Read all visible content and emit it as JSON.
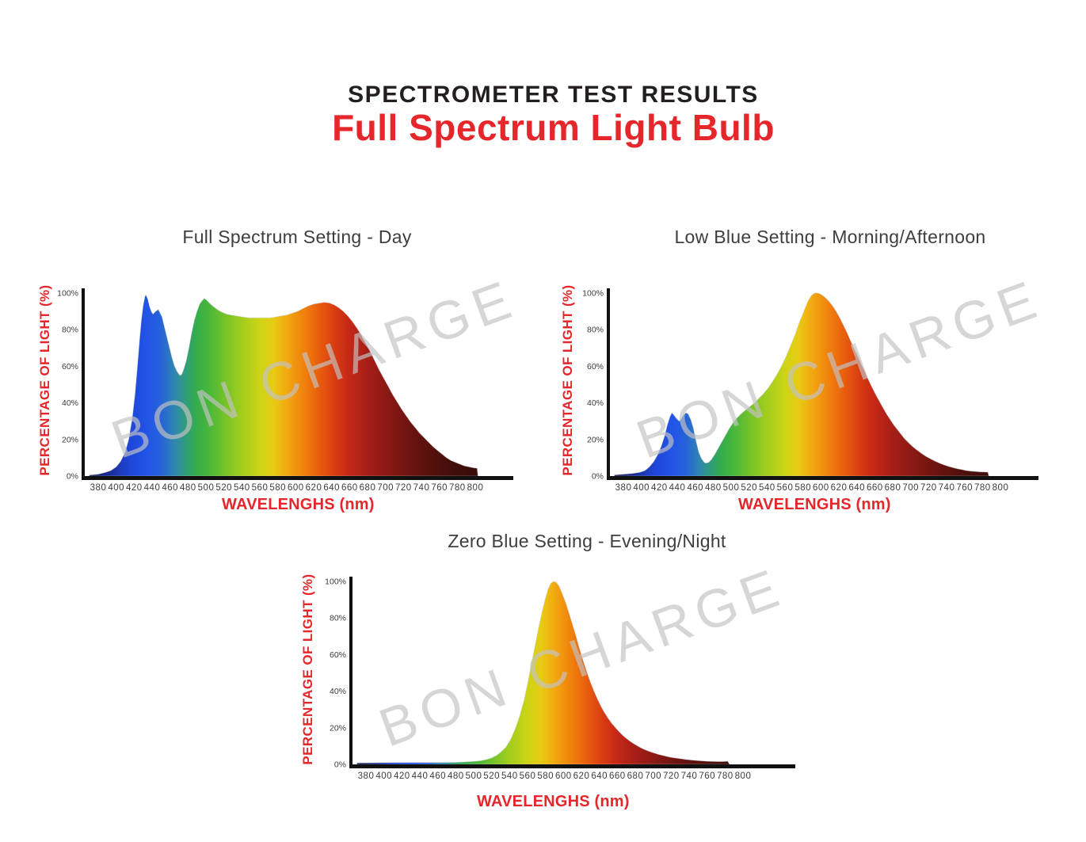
{
  "header": {
    "title": "SPECTROMETER TEST RESULTS",
    "subtitle": "Full Spectrum Light Bulb"
  },
  "watermark": {
    "text": "BON CHARGE",
    "color": "#c2c2c2"
  },
  "colors": {
    "accent_red": "#e5262a",
    "title_black": "#231f20",
    "chart_title_gray": "#3e3e3e",
    "tick_gray": "#3c3c3c",
    "axis_black": "#111111"
  },
  "axis": {
    "x_label": "WAVELENGHS (nm)",
    "y_label": "PERCENTAGE OF LIGHT (%)",
    "x_ticks": [
      380,
      400,
      420,
      440,
      460,
      480,
      500,
      520,
      540,
      560,
      580,
      600,
      620,
      640,
      660,
      680,
      700,
      720,
      740,
      760,
      780,
      800
    ],
    "y_tick_labels": [
      "0%",
      "20%",
      "40%",
      "60%",
      "80%",
      "100%"
    ],
    "y_tick_values": [
      0,
      20,
      40,
      60,
      80,
      100
    ]
  },
  "spectrum_gradient": [
    {
      "wl": 370,
      "color": "#10164f"
    },
    {
      "wl": 395,
      "color": "#1b2f9e"
    },
    {
      "wl": 415,
      "color": "#1f46d8"
    },
    {
      "wl": 435,
      "color": "#2155e8"
    },
    {
      "wl": 450,
      "color": "#2763d8"
    },
    {
      "wl": 465,
      "color": "#2f86b0"
    },
    {
      "wl": 478,
      "color": "#2f9e77"
    },
    {
      "wl": 490,
      "color": "#35ad4a"
    },
    {
      "wl": 505,
      "color": "#4cb838"
    },
    {
      "wl": 520,
      "color": "#72c22a"
    },
    {
      "wl": 540,
      "color": "#a2cd1e"
    },
    {
      "wl": 560,
      "color": "#cdd416"
    },
    {
      "wl": 575,
      "color": "#e7cb13"
    },
    {
      "wl": 588,
      "color": "#f2ae11"
    },
    {
      "wl": 600,
      "color": "#f1930f"
    },
    {
      "wl": 615,
      "color": "#ee750d"
    },
    {
      "wl": 630,
      "color": "#e5560e"
    },
    {
      "wl": 645,
      "color": "#d73a12"
    },
    {
      "wl": 660,
      "color": "#c42817"
    },
    {
      "wl": 680,
      "color": "#a61e18"
    },
    {
      "wl": 700,
      "color": "#8d1a14"
    },
    {
      "wl": 720,
      "color": "#751511"
    },
    {
      "wl": 740,
      "color": "#60120e"
    },
    {
      "wl": 760,
      "color": "#4e100c"
    },
    {
      "wl": 780,
      "color": "#400e0b"
    },
    {
      "wl": 810,
      "color": "#330c09"
    }
  ],
  "chart_data": [
    {
      "type": "area",
      "title": "Full Spectrum Setting - Day",
      "xlabel": "WAVELENGHS (nm)",
      "ylabel": "PERCENTAGE OF LIGHT (%)",
      "xlim": [
        380,
        800
      ],
      "ylim_pct": [
        0,
        100
      ],
      "points": [
        [
          370,
          0.5
        ],
        [
          380,
          1
        ],
        [
          388,
          2
        ],
        [
          394,
          3
        ],
        [
          400,
          5
        ],
        [
          405,
          8
        ],
        [
          410,
          13
        ],
        [
          414,
          20
        ],
        [
          418,
          32
        ],
        [
          421,
          45
        ],
        [
          424,
          62
        ],
        [
          426,
          74
        ],
        [
          428,
          85
        ],
        [
          430,
          93
        ],
        [
          432,
          98
        ],
        [
          433,
          99
        ],
        [
          435,
          97
        ],
        [
          437,
          93
        ],
        [
          439,
          90
        ],
        [
          441,
          88.5
        ],
        [
          444,
          90
        ],
        [
          447,
          91
        ],
        [
          449,
          89
        ],
        [
          451,
          87
        ],
        [
          453,
          83
        ],
        [
          456,
          77
        ],
        [
          459,
          71
        ],
        [
          462,
          65
        ],
        [
          465,
          60
        ],
        [
          468,
          57
        ],
        [
          471,
          55
        ],
        [
          473,
          55.5
        ],
        [
          475,
          58
        ],
        [
          478,
          63
        ],
        [
          481,
          70
        ],
        [
          484,
          78
        ],
        [
          487,
          85
        ],
        [
          490,
          90
        ],
        [
          493,
          94
        ],
        [
          496,
          96
        ],
        [
          498,
          97
        ],
        [
          500,
          96.5
        ],
        [
          503,
          95
        ],
        [
          506,
          93.5
        ],
        [
          510,
          92
        ],
        [
          514,
          90.5
        ],
        [
          518,
          89.5
        ],
        [
          523,
          88.5
        ],
        [
          528,
          88
        ],
        [
          534,
          87.5
        ],
        [
          540,
          87
        ],
        [
          548,
          86.5
        ],
        [
          556,
          86.5
        ],
        [
          564,
          86.5
        ],
        [
          572,
          86.5
        ],
        [
          578,
          87
        ],
        [
          584,
          87.5
        ],
        [
          590,
          88
        ],
        [
          596,
          89
        ],
        [
          602,
          90
        ],
        [
          608,
          91.5
        ],
        [
          614,
          93
        ],
        [
          620,
          94
        ],
        [
          626,
          94.5
        ],
        [
          632,
          95
        ],
        [
          638,
          94.5
        ],
        [
          643,
          93.5
        ],
        [
          648,
          92
        ],
        [
          653,
          90
        ],
        [
          658,
          87.5
        ],
        [
          663,
          84.5
        ],
        [
          668,
          81
        ],
        [
          673,
          77
        ],
        [
          678,
          72.5
        ],
        [
          683,
          68
        ],
        [
          688,
          63
        ],
        [
          693,
          58
        ],
        [
          698,
          53.5
        ],
        [
          703,
          49
        ],
        [
          708,
          44.5
        ],
        [
          713,
          40.5
        ],
        [
          718,
          36.5
        ],
        [
          723,
          33
        ],
        [
          728,
          29.5
        ],
        [
          733,
          26.5
        ],
        [
          738,
          23.5
        ],
        [
          743,
          21
        ],
        [
          748,
          18.5
        ],
        [
          753,
          16
        ],
        [
          758,
          14
        ],
        [
          763,
          12
        ],
        [
          768,
          10
        ],
        [
          773,
          8.5
        ],
        [
          778,
          7.5
        ],
        [
          783,
          6.5
        ],
        [
          788,
          5.5
        ],
        [
          793,
          5
        ],
        [
          798,
          4.5
        ],
        [
          802,
          4.3
        ],
        [
          803,
          0
        ]
      ]
    },
    {
      "type": "area",
      "title": "Low Blue Setting - Morning/Afternoon",
      "xlabel": "WAVELENGHS (nm)",
      "ylabel": "PERCENTAGE OF LIGHT (%)",
      "xlim": [
        380,
        800
      ],
      "ylim_pct": [
        0,
        100
      ],
      "points": [
        [
          370,
          0.6
        ],
        [
          380,
          1
        ],
        [
          390,
          1.4
        ],
        [
          398,
          2
        ],
        [
          404,
          3
        ],
        [
          409,
          5
        ],
        [
          414,
          8
        ],
        [
          418,
          11.5
        ],
        [
          422,
          16
        ],
        [
          426,
          22
        ],
        [
          429,
          28
        ],
        [
          432,
          32.5
        ],
        [
          434,
          34.5
        ],
        [
          436,
          33.5
        ],
        [
          439,
          31.5
        ],
        [
          442,
          30
        ],
        [
          444,
          31
        ],
        [
          447,
          33.5
        ],
        [
          450,
          34.5
        ],
        [
          452,
          34
        ],
        [
          455,
          31
        ],
        [
          458,
          26
        ],
        [
          461,
          19
        ],
        [
          464,
          13
        ],
        [
          467,
          9.5
        ],
        [
          470,
          7.5
        ],
        [
          472,
          7
        ],
        [
          475,
          7.5
        ],
        [
          478,
          9
        ],
        [
          482,
          12
        ],
        [
          486,
          15.5
        ],
        [
          490,
          19
        ],
        [
          494,
          22.5
        ],
        [
          498,
          26
        ],
        [
          502,
          29
        ],
        [
          506,
          31.5
        ],
        [
          511,
          34
        ],
        [
          516,
          36
        ],
        [
          521,
          38
        ],
        [
          526,
          40
        ],
        [
          531,
          42.5
        ],
        [
          536,
          45
        ],
        [
          541,
          48
        ],
        [
          546,
          51.5
        ],
        [
          551,
          55.5
        ],
        [
          556,
          60
        ],
        [
          561,
          65
        ],
        [
          566,
          71
        ],
        [
          571,
          77
        ],
        [
          576,
          84
        ],
        [
          581,
          90
        ],
        [
          585,
          95
        ],
        [
          589,
          98.5
        ],
        [
          593,
          100
        ],
        [
          597,
          100
        ],
        [
          601,
          99
        ],
        [
          605,
          97.5
        ],
        [
          609,
          95.5
        ],
        [
          613,
          93
        ],
        [
          617,
          90
        ],
        [
          621,
          86.5
        ],
        [
          625,
          82.5
        ],
        [
          629,
          78.5
        ],
        [
          633,
          74
        ],
        [
          637,
          69.5
        ],
        [
          641,
          65.5
        ],
        [
          645,
          61
        ],
        [
          649,
          57
        ],
        [
          653,
          52.5
        ],
        [
          657,
          48.5
        ],
        [
          661,
          44.5
        ],
        [
          665,
          41
        ],
        [
          669,
          37.5
        ],
        [
          673,
          34
        ],
        [
          677,
          31
        ],
        [
          681,
          28
        ],
        [
          685,
          25.5
        ],
        [
          689,
          23
        ],
        [
          693,
          20.5
        ],
        [
          697,
          18.5
        ],
        [
          702,
          16.2
        ],
        [
          707,
          14.2
        ],
        [
          712,
          12.4
        ],
        [
          717,
          10.8
        ],
        [
          722,
          9.4
        ],
        [
          727,
          8.2
        ],
        [
          732,
          7.1
        ],
        [
          737,
          6.1
        ],
        [
          742,
          5.3
        ],
        [
          747,
          4.6
        ],
        [
          752,
          4
        ],
        [
          757,
          3.5
        ],
        [
          762,
          3
        ],
        [
          767,
          2.7
        ],
        [
          772,
          2.5
        ],
        [
          777,
          2.3
        ],
        [
          782,
          2.2
        ],
        [
          786,
          2.1
        ],
        [
          787,
          0
        ]
      ]
    },
    {
      "type": "area",
      "title": "Zero Blue Setting - Evening/Night",
      "xlabel": "WAVELENGHS (nm)",
      "ylabel": "PERCENTAGE OF LIGHT (%)",
      "xlim": [
        380,
        800
      ],
      "ylim_pct": [
        0,
        100
      ],
      "points": [
        [
          370,
          0.8
        ],
        [
          400,
          0.9
        ],
        [
          430,
          1
        ],
        [
          460,
          1
        ],
        [
          480,
          1.1
        ],
        [
          490,
          1.3
        ],
        [
          500,
          1.6
        ],
        [
          508,
          2
        ],
        [
          514,
          2.6
        ],
        [
          520,
          3.5
        ],
        [
          526,
          5
        ],
        [
          531,
          7
        ],
        [
          536,
          9.5
        ],
        [
          541,
          13.5
        ],
        [
          546,
          19
        ],
        [
          551,
          26
        ],
        [
          556,
          35
        ],
        [
          560,
          44
        ],
        [
          564,
          54
        ],
        [
          568,
          64
        ],
        [
          572,
          74
        ],
        [
          576,
          83
        ],
        [
          580,
          91
        ],
        [
          583,
          96
        ],
        [
          586,
          99
        ],
        [
          589,
          100
        ],
        [
          592,
          99.5
        ],
        [
          595,
          97.5
        ],
        [
          598,
          94
        ],
        [
          602,
          89
        ],
        [
          606,
          83
        ],
        [
          610,
          76.5
        ],
        [
          614,
          70
        ],
        [
          618,
          63
        ],
        [
          622,
          56.5
        ],
        [
          626,
          50.5
        ],
        [
          630,
          45
        ],
        [
          634,
          40
        ],
        [
          638,
          35.5
        ],
        [
          642,
          31.5
        ],
        [
          646,
          28
        ],
        [
          650,
          25
        ],
        [
          654,
          22.3
        ],
        [
          658,
          20
        ],
        [
          662,
          17.8
        ],
        [
          666,
          15.9
        ],
        [
          670,
          14.2
        ],
        [
          674,
          12.7
        ],
        [
          678,
          11.4
        ],
        [
          682,
          10.2
        ],
        [
          686,
          9.1
        ],
        [
          690,
          8.2
        ],
        [
          695,
          7.2
        ],
        [
          700,
          6.3
        ],
        [
          706,
          5.4
        ],
        [
          712,
          4.7
        ],
        [
          718,
          4
        ],
        [
          724,
          3.5
        ],
        [
          730,
          3.1
        ],
        [
          736,
          2.7
        ],
        [
          742,
          2.4
        ],
        [
          748,
          2.1
        ],
        [
          754,
          1.9
        ],
        [
          760,
          1.7
        ],
        [
          766,
          1.6
        ],
        [
          772,
          1.5
        ],
        [
          778,
          1.5
        ],
        [
          783,
          1.7
        ],
        [
          785,
          0
        ]
      ]
    }
  ]
}
